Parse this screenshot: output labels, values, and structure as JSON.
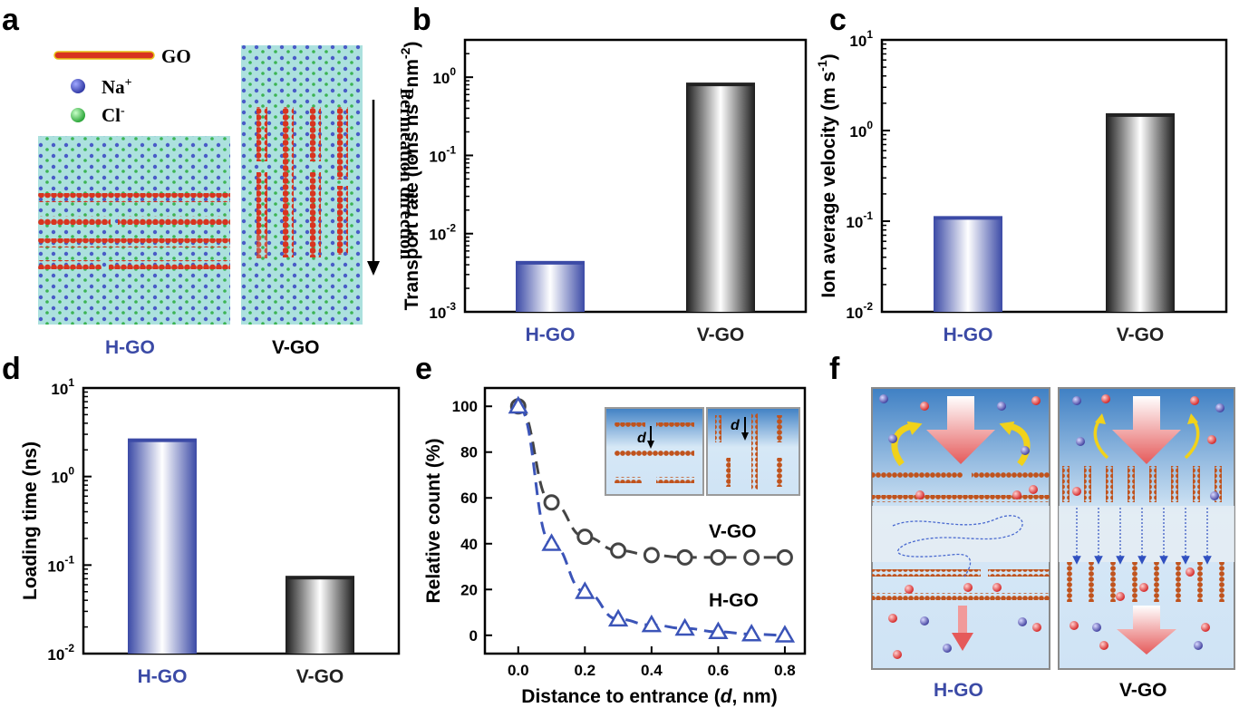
{
  "panel_labels": {
    "a": "a",
    "b": "b",
    "c": "c",
    "d": "d",
    "e": "e",
    "f": "f"
  },
  "panel_a": {
    "legend": {
      "go": "GO",
      "na": "Na",
      "na_sup": "+",
      "cl": "Cl",
      "cl_sup": "-"
    },
    "permeation_label": "Permeation direction",
    "label_h": "H-GO",
    "label_v": "V-GO"
  },
  "panel_f": {
    "label_h": "H-GO",
    "label_v": "V-GO"
  },
  "colors": {
    "hgo": "#3b4aa6",
    "vgo": "#222222",
    "water": "#a8dfdc",
    "sheet": "#d8341f"
  },
  "chart_data": [
    {
      "type": "bar",
      "panel": "b",
      "categories": [
        "H-GO",
        "V-GO"
      ],
      "values": [
        0.0043,
        0.82
      ],
      "ylabel": "Transport rate (ions ns-1 nm-2)",
      "ylim": [
        0.001,
        3
      ],
      "yscale": "log",
      "ticks": [
        "10",
        "10",
        "10",
        "10"
      ],
      "tick_exp": [
        "-3",
        "-2",
        "-1",
        "0"
      ]
    },
    {
      "type": "bar",
      "panel": "c",
      "categories": [
        "H-GO",
        "V-GO"
      ],
      "values": [
        0.11,
        1.5
      ],
      "ylabel": "Ion average velocity (m s-1)",
      "ylim": [
        0.01,
        10
      ],
      "yscale": "log",
      "ticks": [
        "10",
        "10",
        "10",
        "10"
      ],
      "tick_exp": [
        "-2",
        "-1",
        "0",
        "1"
      ]
    },
    {
      "type": "bar",
      "panel": "d",
      "categories": [
        "H-GO",
        "V-GO"
      ],
      "values": [
        2.6,
        0.073
      ],
      "ylabel": "Loading time (ns)",
      "ylim": [
        0.01,
        10
      ],
      "yscale": "log",
      "ticks": [
        "10",
        "10",
        "10",
        "10"
      ],
      "tick_exp": [
        "-2",
        "-1",
        "0",
        "1"
      ]
    },
    {
      "type": "scatter",
      "panel": "e",
      "xlabel": "Distance to entrance (d, nm)",
      "ylabel": "Relative count (%)",
      "xlim": [
        -0.1,
        0.86
      ],
      "ylim": [
        -8,
        108
      ],
      "xticks": [
        "0.0",
        "0.2",
        "0.4",
        "0.6",
        "0.8"
      ],
      "yticks": [
        "0",
        "20",
        "40",
        "60",
        "80",
        "100"
      ],
      "series": [
        {
          "name": "V-GO",
          "x": [
            0,
            0.1,
            0.2,
            0.3,
            0.4,
            0.5,
            0.6,
            0.7,
            0.8
          ],
          "y": [
            100,
            58,
            43,
            37,
            35,
            34,
            34,
            34,
            34
          ]
        },
        {
          "name": "H-GO",
          "x": [
            0,
            0.1,
            0.2,
            0.3,
            0.4,
            0.5,
            0.6,
            0.7,
            0.8
          ],
          "y": [
            100,
            40,
            19,
            7,
            4.5,
            3,
            1.5,
            0.5,
            0
          ]
        }
      ],
      "inset_label": "d"
    }
  ]
}
